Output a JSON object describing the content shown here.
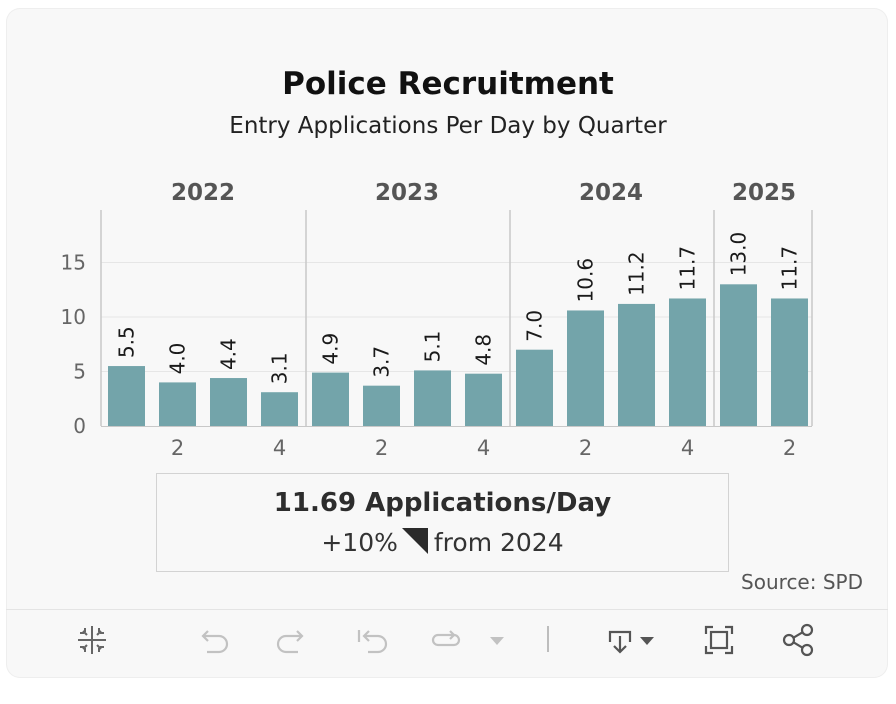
{
  "title": "Police Recruitment",
  "subtitle": "Entry Applications Per Day by Quarter",
  "source": "Source: SPD",
  "kpi": {
    "value": "11.69 Applications/Day",
    "change_prefix": "+10%",
    "change_suffix": "from 2024"
  },
  "colors": {
    "bar": "#73a4aa",
    "grid": "#e6e6e6",
    "divider": "#c8c8c8",
    "icon": "#555555",
    "icon_disabled": "#c2c2c2"
  },
  "chart_data": {
    "type": "bar",
    "title": "Police Recruitment",
    "subtitle": "Entry Applications Per Day by Quarter",
    "groups": [
      {
        "year": "2022",
        "quarters": [
          "1",
          "2",
          "3",
          "4"
        ],
        "values": [
          5.5,
          4.0,
          4.4,
          3.1
        ]
      },
      {
        "year": "2023",
        "quarters": [
          "1",
          "2",
          "3",
          "4"
        ],
        "values": [
          4.9,
          3.7,
          5.1,
          4.8
        ]
      },
      {
        "year": "2024",
        "quarters": [
          "1",
          "2",
          "3",
          "4"
        ],
        "values": [
          7.0,
          10.6,
          11.2,
          11.7
        ]
      },
      {
        "year": "2025",
        "quarters": [
          "1",
          "2"
        ],
        "values": [
          13.0,
          11.7
        ]
      }
    ],
    "data_labels": [
      "5.5",
      "4.0",
      "4.4",
      "3.1",
      "4.9",
      "3.7",
      "5.1",
      "4.8",
      "7.0",
      "10.6",
      "11.2",
      "11.7",
      "13.0",
      "11.7"
    ],
    "x_tick_labels": [
      "",
      "2",
      "",
      "4",
      "",
      "2",
      "",
      "4",
      "",
      "2",
      "",
      "4",
      "",
      "2"
    ],
    "y_ticks": [
      0,
      5,
      10,
      15
    ],
    "y_tick_labels": [
      "0",
      "5",
      "10",
      "15"
    ],
    "ylim": [
      0,
      18
    ],
    "grid": true
  },
  "toolbar": {
    "items": [
      "tableau-logo-icon",
      "undo-icon",
      "redo-icon",
      "revert-icon",
      "refresh-icon",
      "pause-dropdown-icon",
      "download-icon",
      "fullscreen-icon",
      "share-icon"
    ]
  }
}
